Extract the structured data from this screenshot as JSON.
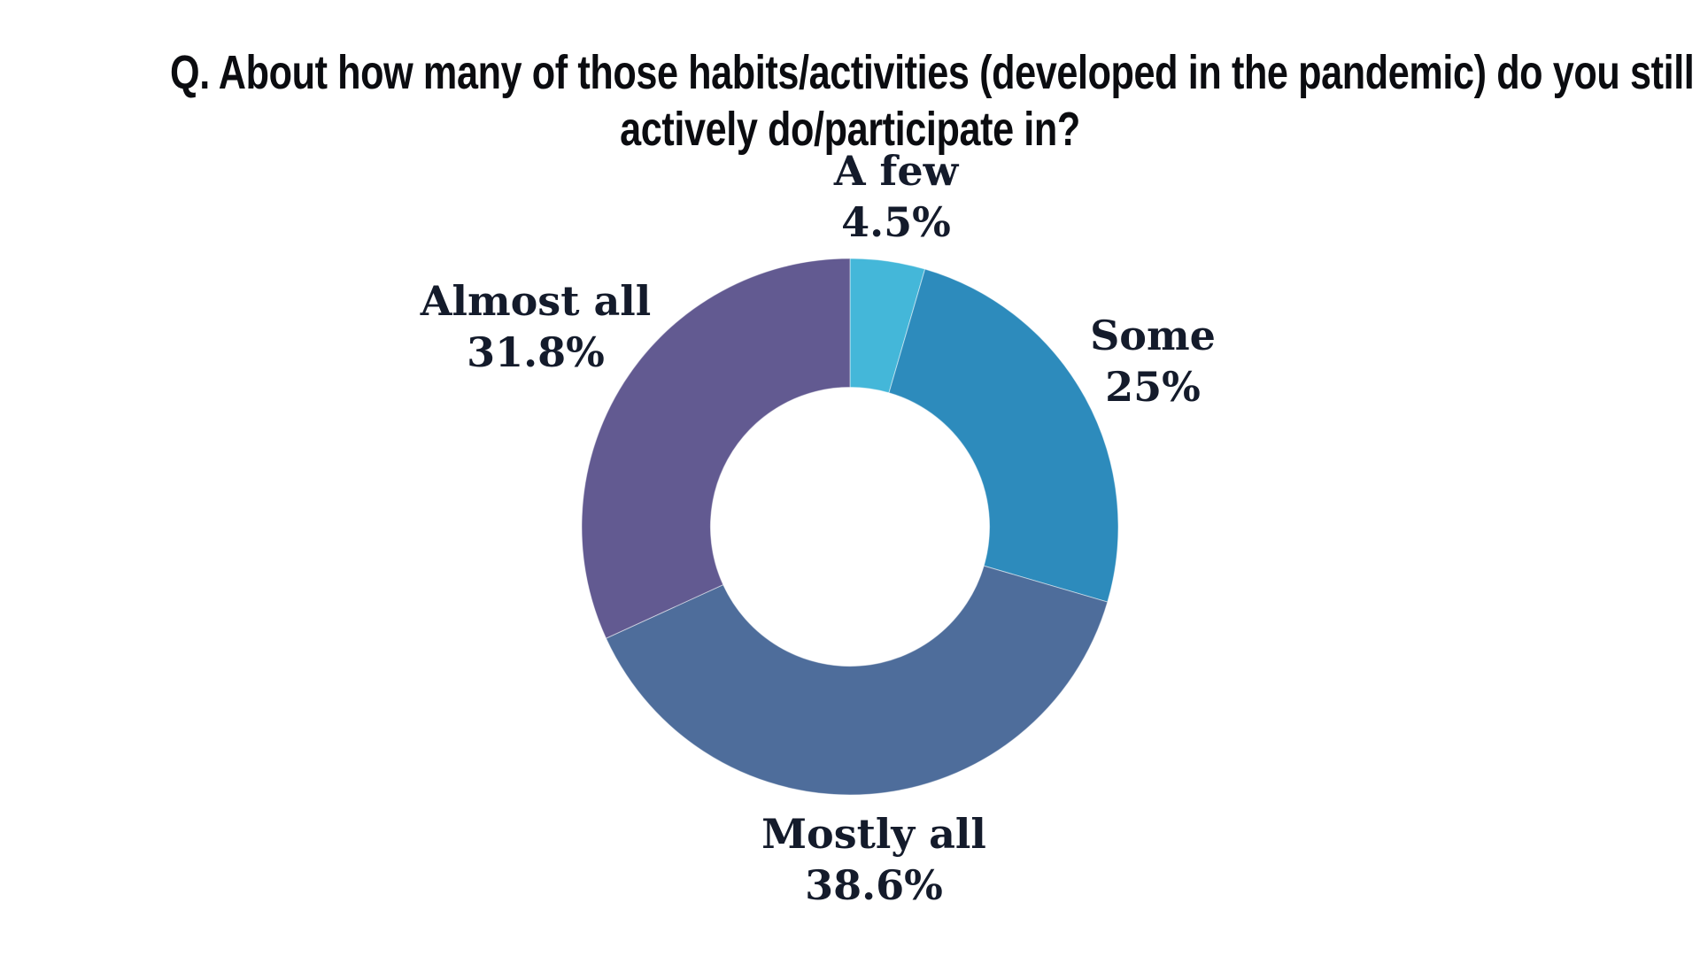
{
  "title": {
    "line1": "Q. About how many of those habits/activities (developed in the pandemic) do you still",
    "line2": "actively do/participate in?"
  },
  "chart_data": {
    "type": "pie",
    "subtype": "donut",
    "title": "Q. About how many of those habits/activities (developed in the pandemic) do you still actively do/participate in?",
    "categories": [
      "A few",
      "Some",
      "Mostly all",
      "Almost all"
    ],
    "values": [
      4.5,
      25,
      38.6,
      31.8
    ],
    "percent_labels": [
      "4.5%",
      "25%",
      "38.6%",
      "31.8%"
    ],
    "colors": [
      "#44b7d9",
      "#2d8bbc",
      "#4e6d9b",
      "#625a91"
    ],
    "start_angle": "12-o-clock",
    "direction": "clockwise",
    "inner_radius_ratio": 0.52,
    "legend_position": "none",
    "data_labels": "outside",
    "label_color": "#141b2b",
    "title_color": "#0b0c10",
    "background_color": "#ffffff"
  }
}
